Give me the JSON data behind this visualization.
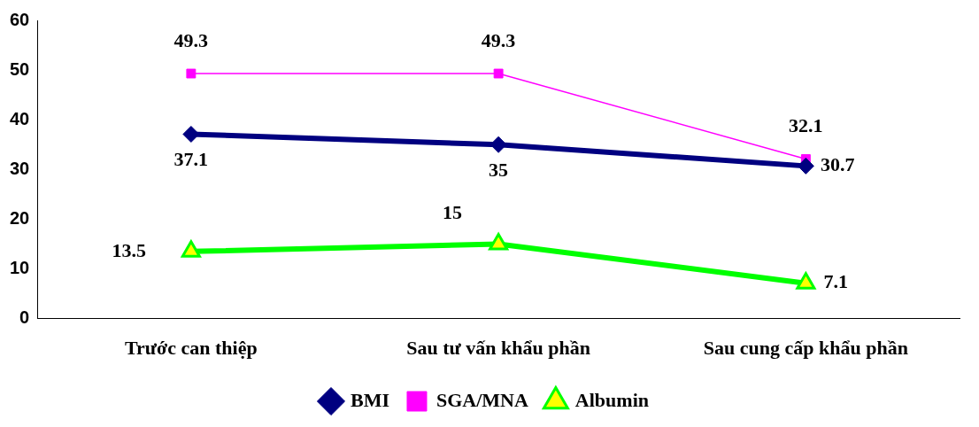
{
  "chart_data": {
    "type": "line",
    "categories": [
      "Trước can thiệp",
      "Sau tư vấn khẩu phần",
      "Sau cung cấp khẩu phần"
    ],
    "series": [
      {
        "name": "BMI",
        "color": "#000080",
        "values": [
          37.1,
          35,
          30.7
        ],
        "marker": "diamond"
      },
      {
        "name": "SGA/MNA",
        "color": "#ff00ff",
        "values": [
          49.3,
          49.3,
          32.1
        ],
        "marker": "square"
      },
      {
        "name": "Albumin",
        "color": "#00ff00",
        "colors": [
          "#ffff00",
          "#ffff00",
          "#ffff00"
        ],
        "values": [
          13.5,
          15,
          7.1
        ],
        "marker": "triangle"
      }
    ],
    "ylim": [
      0,
      60
    ],
    "yticks": [
      0,
      10,
      20,
      30,
      40,
      50,
      60
    ],
    "grid": false,
    "legend": "bottom",
    "data_labels": true,
    "line_style": "solid"
  }
}
